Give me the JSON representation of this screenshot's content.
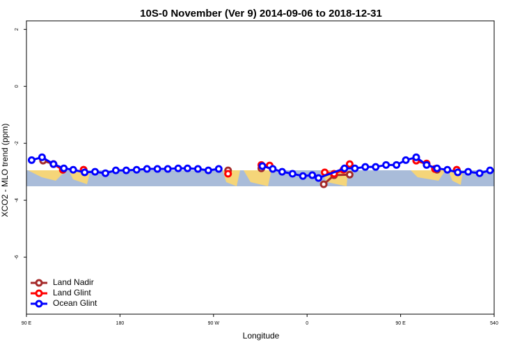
{
  "chart_data": {
    "type": "line",
    "title": "10S-0 November (Ver 9)   2014-09-06 to 2018-12-31",
    "x_label": "Longitude",
    "y_label": "XCO2 - MLO trend (ppm)",
    "xlim": [
      90,
      540
    ],
    "ylim": [
      -8,
      2.3
    ],
    "xticks": [
      {
        "value": 90,
        "label": "90 E"
      },
      180,
      {
        "value": 270,
        "label": "90 W"
      },
      {
        "value": 360,
        "label": "0"
      },
      {
        "value": 450,
        "label": "90 E"
      },
      540
    ],
    "yticks": [
      2,
      0,
      -2,
      -4,
      -6
    ],
    "legend": "bottomleft",
    "series": [
      {
        "name": "Land Nadir",
        "color": "#a52a2a",
        "x": [
          106,
          116,
          125,
          135,
          145,
          214,
          284,
          300,
          316,
          346,
          376,
          386,
          401,
          433,
          465,
          475,
          485,
          495,
          504
        ],
        "values": [
          -2.61,
          -2.73,
          -2.93,
          null,
          -2.93,
          null,
          -2.95,
          null,
          -2.88,
          null,
          -3.44,
          -3.12,
          -3.1,
          null,
          -2.61,
          -2.73,
          -2.93,
          null,
          -2.93
        ]
      },
      {
        "name": "Land Glint",
        "color": "#ff0000",
        "x": [
          116,
          125,
          135,
          145,
          214,
          284,
          300,
          316,
          324,
          350,
          377,
          386,
          395,
          401,
          433,
          465,
          475,
          483,
          495,
          504
        ],
        "values": [
          -2.73,
          -2.93,
          null,
          -2.93,
          null,
          -3.07,
          null,
          -2.76,
          -2.78,
          null,
          -3.02,
          -3.07,
          -2.93,
          -2.73,
          null,
          -2.61,
          -2.71,
          -2.9,
          null,
          -2.93
        ]
      },
      {
        "name": "Ocean Glint",
        "color": "#0000ff",
        "x": [
          95,
          105,
          116,
          126,
          135,
          146,
          156,
          166,
          176,
          186,
          196,
          206,
          216,
          226,
          236,
          245,
          255,
          265,
          275,
          296,
          317,
          327,
          336,
          346,
          356,
          365,
          371,
          396,
          406,
          416,
          426,
          436,
          446,
          455,
          465,
          475,
          485,
          495,
          505,
          515,
          526,
          536
        ],
        "values": [
          -2.59,
          -2.49,
          -2.73,
          -2.88,
          -2.93,
          -3.02,
          -3.0,
          -3.05,
          -2.95,
          -2.95,
          -2.93,
          -2.9,
          -2.9,
          -2.9,
          -2.88,
          -2.88,
          -2.9,
          -2.95,
          -2.9,
          null,
          -2.8,
          -2.9,
          -3.0,
          -3.07,
          -3.15,
          -3.12,
          -3.22,
          -2.88,
          -2.88,
          -2.83,
          -2.83,
          -2.76,
          -2.76,
          -2.59,
          -2.49,
          -2.76,
          -2.88,
          -2.93,
          -3.02,
          -3.0,
          -3.05,
          -2.95
        ]
      }
    ]
  }
}
